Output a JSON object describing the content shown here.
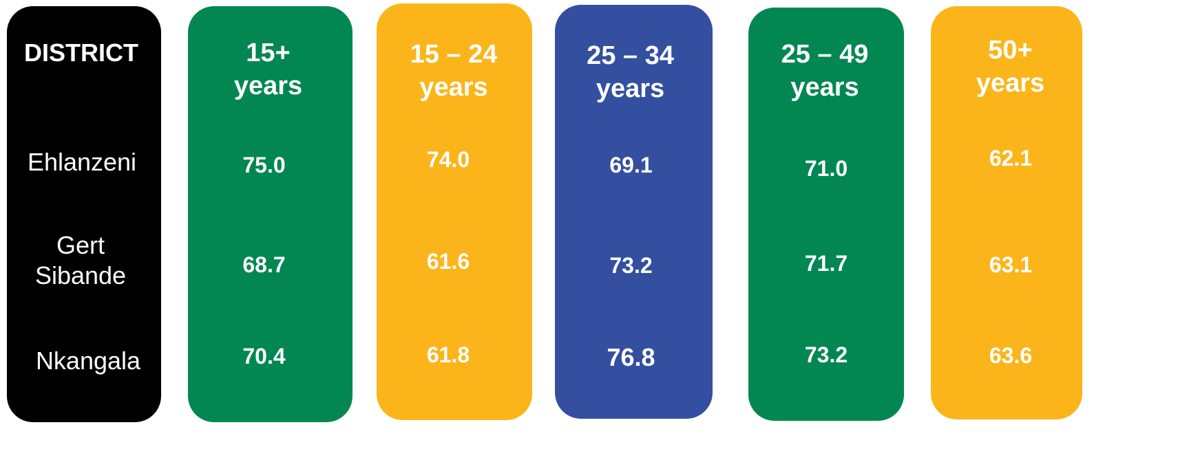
{
  "chart_data": {
    "type": "table",
    "row_header": "DISTRICT",
    "rows": [
      "Ehlanzeni",
      "Gert Sibande",
      "Nkangala"
    ],
    "columns": [
      {
        "label_lines": [
          "15+",
          "years"
        ],
        "color": "#028752",
        "values": [
          "75.0",
          "68.7",
          "70.4"
        ]
      },
      {
        "label_lines": [
          "15 – 24",
          "years"
        ],
        "color": "#FBB51B",
        "values": [
          "74.0",
          "61.6",
          "61.8"
        ]
      },
      {
        "label_lines": [
          "25 – 34",
          "years"
        ],
        "color": "#344FA0",
        "values": [
          "69.1",
          "73.2",
          "76.8"
        ]
      },
      {
        "label_lines": [
          "25 – 49",
          "years"
        ],
        "color": "#028752",
        "values": [
          "71.0",
          "71.7",
          "73.2"
        ]
      },
      {
        "label_lines": [
          "50+",
          "years"
        ],
        "color": "#FBB51B",
        "values": [
          "62.1",
          "63.1",
          "63.6"
        ]
      }
    ]
  },
  "district_column": {
    "header": "DISTRICT",
    "rows": [
      [
        "Ehlanzeni"
      ],
      [
        "Gert",
        "Sibande"
      ],
      [
        "Nkangala"
      ]
    ],
    "color": "#000000"
  }
}
